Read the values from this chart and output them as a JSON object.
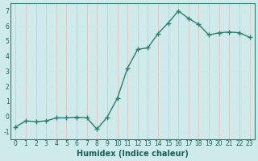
{
  "xlabel": "Humidex (Indice chaleur)",
  "x": [
    0,
    1,
    2,
    3,
    4,
    5,
    6,
    7,
    8,
    9,
    10,
    11,
    12,
    13,
    14,
    15,
    16,
    17,
    18,
    19,
    20,
    21,
    22,
    23
  ],
  "y": [
    -0.7,
    -0.3,
    -0.35,
    -0.3,
    -0.1,
    -0.1,
    -0.05,
    -0.1,
    -0.85,
    -0.05,
    1.2,
    3.2,
    4.45,
    4.55,
    5.5,
    6.2,
    7.0,
    6.5,
    6.1,
    5.4,
    5.55,
    5.6,
    5.55,
    5.25
  ],
  "line_color": "#2e7d6e",
  "marker": "+",
  "marker_size": 4,
  "bg_color": "#ceeaea",
  "grid_color_major": "#e8b8b8",
  "grid_color_minor": "#cde8e8",
  "ylim": [
    -1.5,
    7.5
  ],
  "xlim": [
    -0.5,
    23.5
  ],
  "yticks": [
    -1,
    0,
    1,
    2,
    3,
    4,
    5,
    6,
    7
  ],
  "xticks": [
    0,
    1,
    2,
    3,
    4,
    5,
    6,
    7,
    8,
    9,
    10,
    11,
    12,
    13,
    14,
    15,
    16,
    17,
    18,
    19,
    20,
    21,
    22,
    23
  ],
  "tick_label_fontsize": 5.5,
  "xlabel_fontsize": 7,
  "line_width": 1.0
}
